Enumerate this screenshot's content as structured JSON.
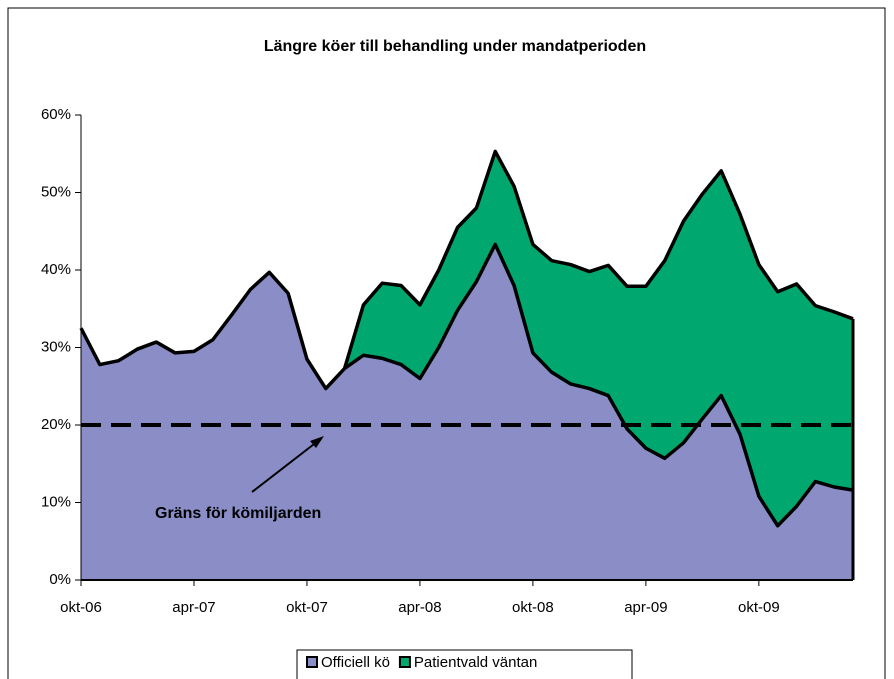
{
  "chart_data": {
    "type": "stacked_area",
    "title": "Längre köer till behandling under mandatperioden",
    "categories": [
      "okt-06",
      null,
      null,
      null,
      null,
      null,
      "apr-07",
      null,
      null,
      null,
      null,
      null,
      "okt-07",
      null,
      null,
      null,
      null,
      null,
      "apr-08",
      null,
      null,
      null,
      null,
      null,
      "okt-08",
      null,
      null,
      null,
      null,
      null,
      "apr-09",
      null,
      null,
      null,
      null,
      null,
      "okt-09",
      null,
      null,
      null,
      null,
      null
    ],
    "series": [
      {
        "name": "Officiell kö",
        "color": "#8a8dc6",
        "values": [
          32.5,
          27.8,
          28.3,
          29.8,
          30.7,
          29.3,
          29.5,
          31.0,
          34.2,
          37.5,
          39.7,
          37.0,
          28.5,
          24.7,
          27.3,
          29.0,
          28.6,
          27.8,
          26.0,
          30.0,
          34.8,
          38.5,
          43.3,
          38.0,
          29.3,
          26.8,
          25.3,
          24.7,
          23.8,
          19.5,
          17.0,
          15.7,
          17.7,
          20.8,
          23.8,
          18.8,
          10.8,
          7.0,
          9.5,
          12.7,
          12.0,
          11.6
        ]
      },
      {
        "name": "Patientvald väntan",
        "color": "#00a870",
        "values": [
          null,
          null,
          null,
          null,
          null,
          null,
          null,
          null,
          null,
          null,
          null,
          null,
          null,
          null,
          0,
          6.5,
          9.7,
          10.2,
          9.5,
          10.0,
          10.7,
          9.5,
          12.0,
          12.8,
          14.0,
          14.4,
          15.4,
          15.1,
          16.8,
          18.4,
          20.9,
          25.5,
          28.6,
          29.0,
          29.0,
          28.4,
          29.9,
          30.2,
          28.7,
          22.7,
          22.6,
          22.1
        ]
      }
    ],
    "ylim": [
      0,
      60
    ],
    "yticks": [
      {
        "value": 0,
        "label": "0%"
      },
      {
        "value": 10,
        "label": "10%"
      },
      {
        "value": 20,
        "label": "20%"
      },
      {
        "value": 30,
        "label": "30%"
      },
      {
        "value": 40,
        "label": "40%"
      },
      {
        "value": 50,
        "label": "50%"
      },
      {
        "value": 60,
        "label": "60%"
      }
    ],
    "annotation": {
      "text": "Gräns för kömiljarden",
      "value": 20
    },
    "legend": "bottom"
  }
}
